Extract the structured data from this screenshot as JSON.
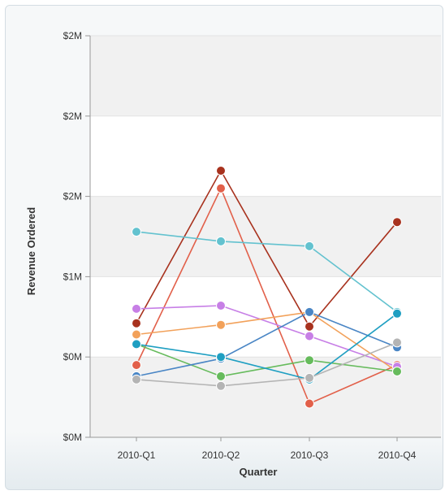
{
  "chart_data": {
    "type": "line",
    "xlabel": "Quarter",
    "ylabel": "Revenue Ordered",
    "categories": [
      "2010-Q1",
      "2010-Q2",
      "2010-Q3",
      "2010-Q4"
    ],
    "y_ticks": [
      {
        "value": 0,
        "label": "$0M"
      },
      {
        "value": 0.5,
        "label": "$0M"
      },
      {
        "value": 1.0,
        "label": "$1M"
      },
      {
        "value": 1.5,
        "label": "$2M"
      },
      {
        "value": 2.0,
        "label": "$2M"
      },
      {
        "value": 2.5,
        "label": "$2M"
      }
    ],
    "ylim": [
      0,
      2.5
    ],
    "grid": true,
    "bands": true,
    "series": [
      {
        "color": "#a8321e",
        "values": [
          0.71,
          1.66,
          0.69,
          1.34
        ]
      },
      {
        "color": "#e2604a",
        "values": [
          0.45,
          1.55,
          0.21,
          0.45
        ]
      },
      {
        "color": "#63c2cf",
        "values": [
          1.28,
          1.22,
          1.19,
          0.78
        ]
      },
      {
        "color": "#c77fe6",
        "values": [
          0.8,
          0.82,
          0.63,
          0.44
        ]
      },
      {
        "color": "#f2a15a",
        "values": [
          0.64,
          0.7,
          0.78,
          0.41
        ]
      },
      {
        "color": "#66bb5c",
        "values": [
          0.58,
          0.38,
          0.48,
          0.41
        ]
      },
      {
        "color": "#4a86c5",
        "values": [
          0.38,
          0.49,
          0.78,
          0.56
        ]
      },
      {
        "color": "#1f9fc2",
        "values": [
          0.58,
          0.5,
          0.36,
          0.77
        ]
      },
      {
        "color": "#b4b4b4",
        "values": [
          0.36,
          0.32,
          0.37,
          0.59
        ]
      }
    ]
  }
}
